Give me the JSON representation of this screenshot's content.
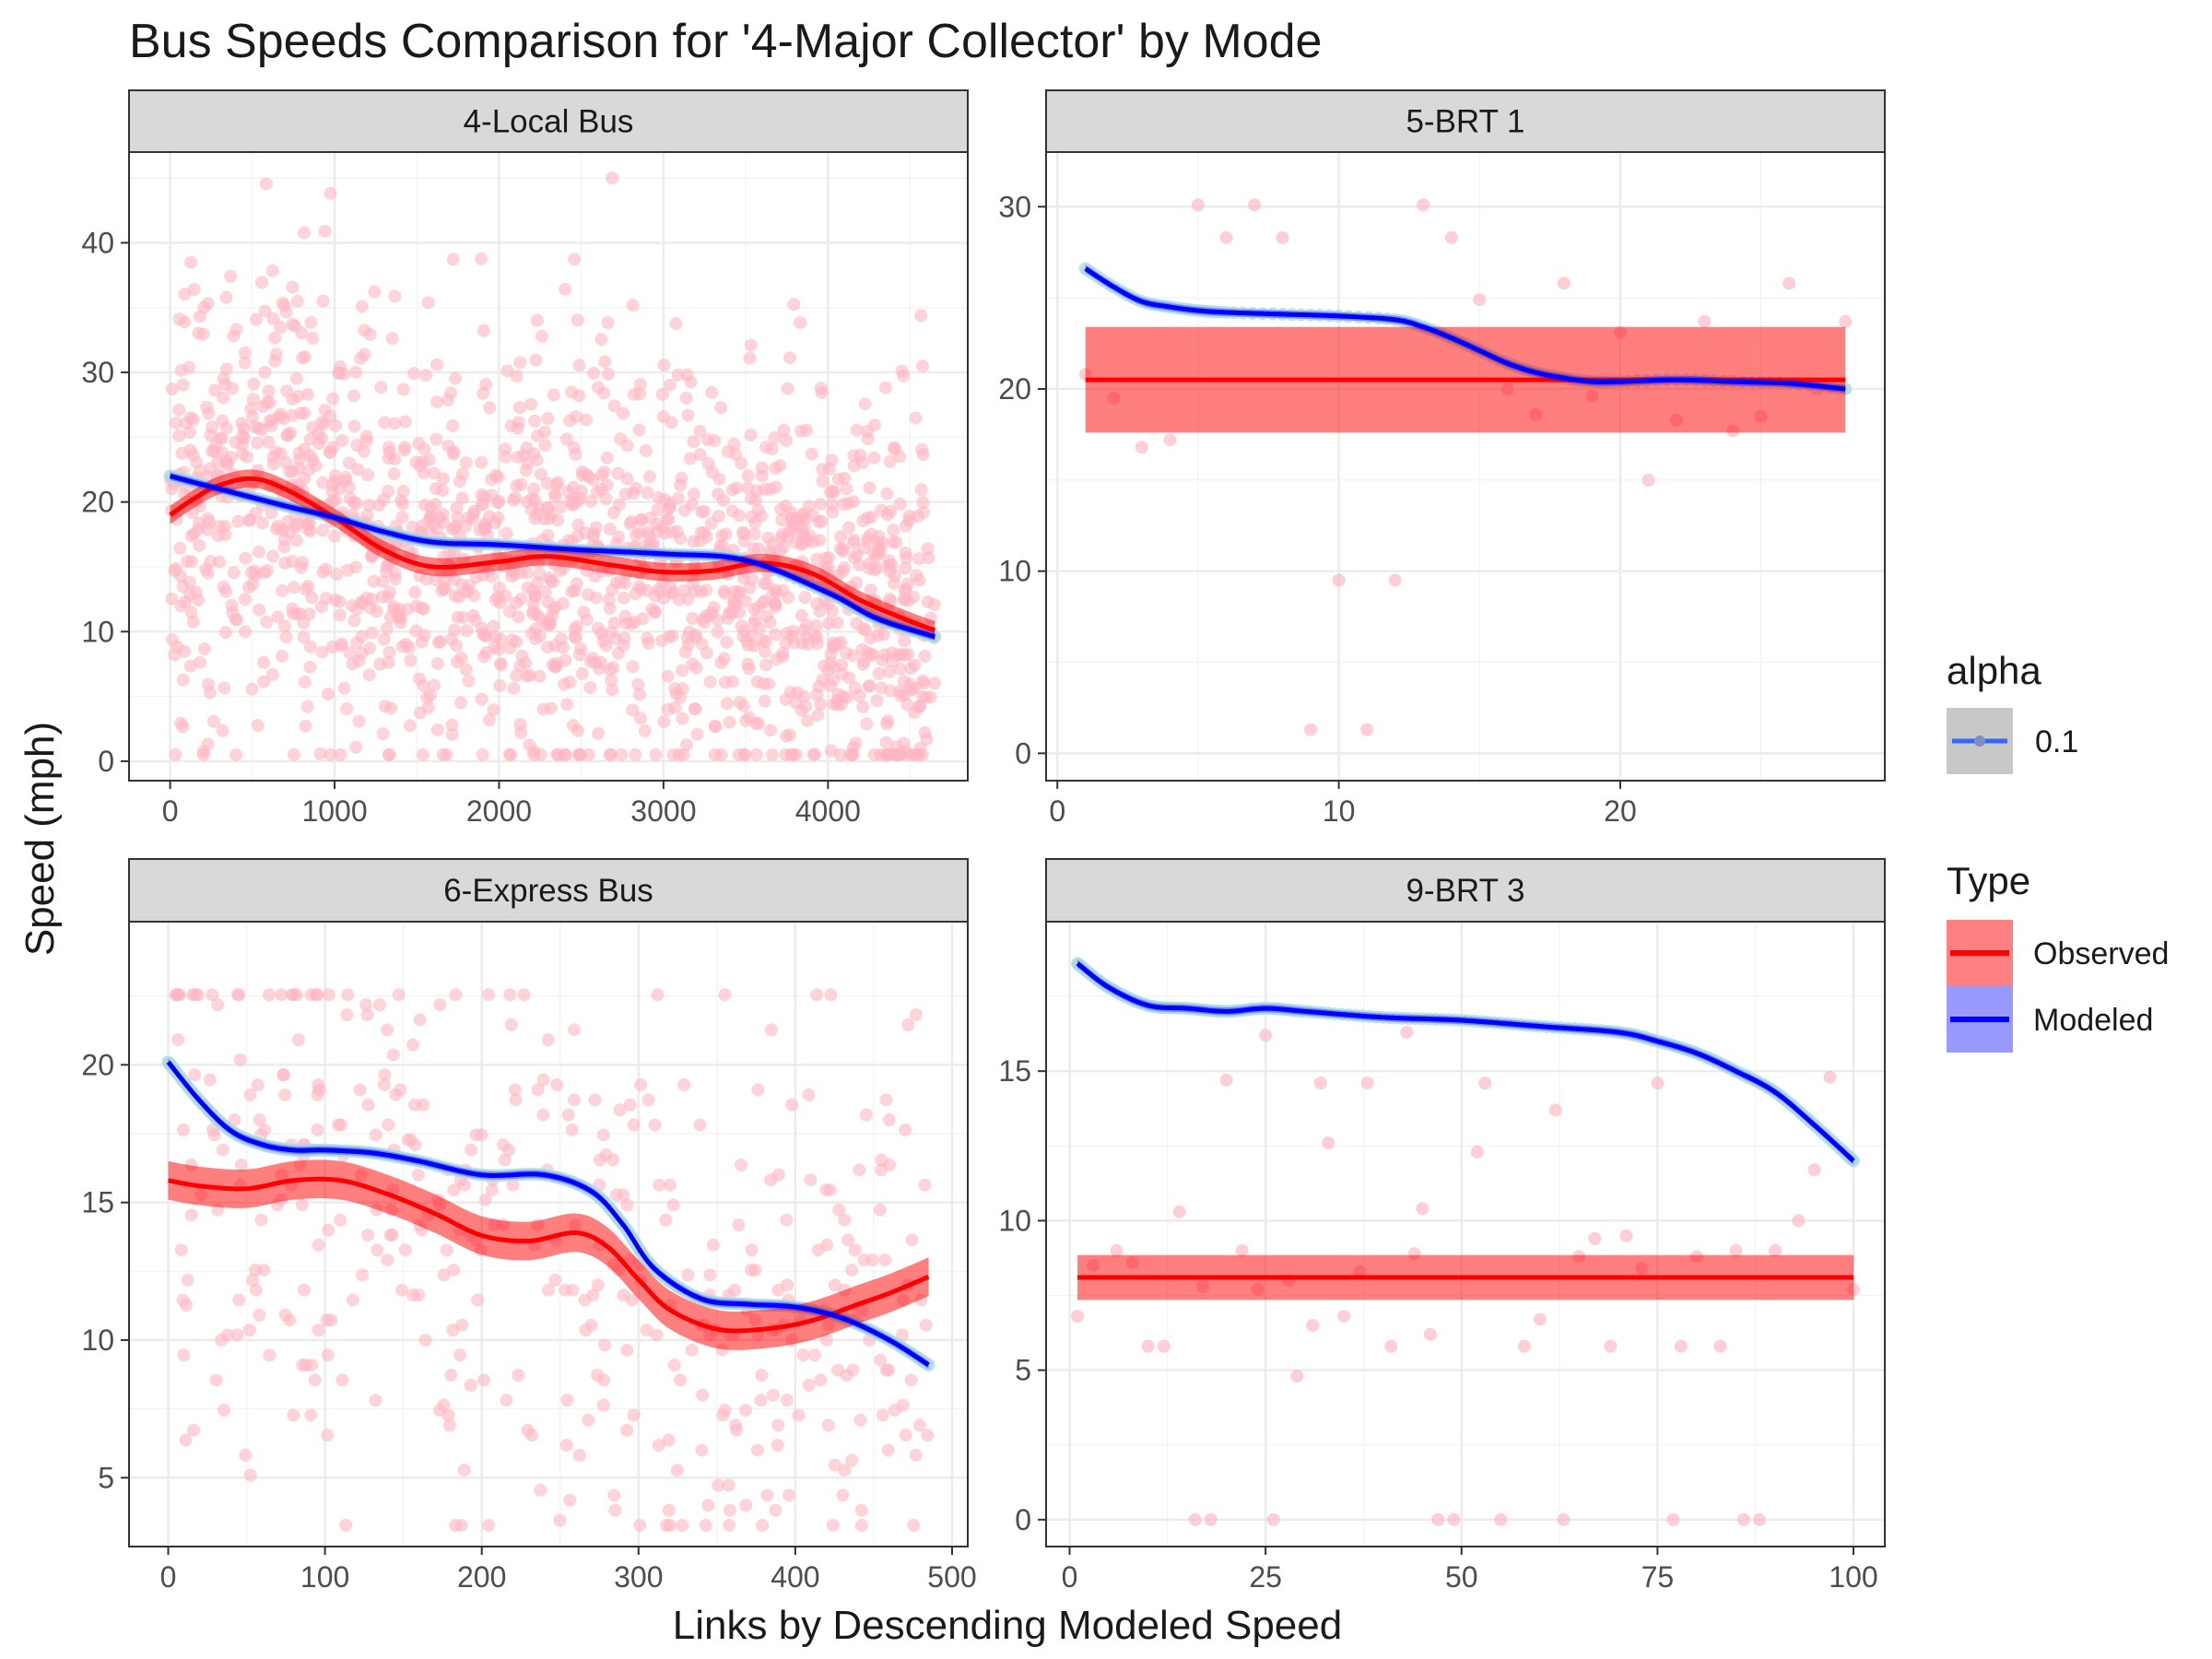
{
  "chart_data": {
    "type": "scatter",
    "title": "Bus Speeds Comparison for '4-Major Collector' by Mode",
    "xlabel": "Links by Descending Modeled Speed",
    "ylabel": "Speed (mph)",
    "legend": {
      "position": "right",
      "alpha_title": "alpha",
      "alpha_value": "0.1",
      "type_title": "Type",
      "type_entries": [
        {
          "label": "Observed",
          "color": "#ff0000",
          "fill": "#ff8080"
        },
        {
          "label": "Modeled",
          "color": "#0000ff",
          "fill": "#9999ff"
        }
      ]
    },
    "colors": {
      "observed_points": "#ffb6c1",
      "modeled_points": "#add8e6",
      "observed_line": "#ff0000",
      "modeled_line": "#0000ff",
      "strip_fill": "#d9d9d9",
      "grid_major": "#ebebeb"
    },
    "grid": true,
    "panels": [
      {
        "name": "4-Local Bus",
        "xlim": [
          -250,
          4850
        ],
        "ylim": [
          -1.5,
          47
        ],
        "xticks": [
          0,
          1000,
          2000,
          3000,
          4000
        ],
        "yticks": [
          0,
          10,
          20,
          30,
          40
        ],
        "observed_points": {
          "n": 1600,
          "x_range": [
            0,
            4650
          ],
          "y_center": 17,
          "y_spread": 8,
          "y_range": [
            0.5,
            45
          ]
        },
        "modeled_curve": {
          "x": [
            0,
            300,
            700,
            1000,
            1300,
            1600,
            2000,
            2500,
            3000,
            3500,
            4000,
            4300,
            4650
          ],
          "y": [
            22.0,
            21.0,
            19.7,
            18.8,
            17.7,
            16.9,
            16.7,
            16.3,
            16.0,
            15.5,
            13.0,
            11.0,
            9.6
          ]
        },
        "observed_fit": {
          "x": [
            0,
            150,
            300,
            500,
            700,
            1000,
            1300,
            1600,
            2000,
            2300,
            2700,
            3000,
            3300,
            3600,
            3900,
            4200,
            4500,
            4650
          ],
          "y": [
            19.0,
            20.3,
            21.3,
            21.8,
            21.0,
            18.8,
            16.3,
            15.0,
            15.4,
            15.8,
            15.1,
            14.6,
            14.7,
            15.3,
            14.5,
            12.4,
            10.8,
            10.1
          ]
        },
        "observed_band": 0.7
      },
      {
        "name": "5-BRT 1",
        "xlim": [
          -0.4,
          29.4
        ],
        "ylim": [
          -1.5,
          33
        ],
        "xticks": [
          0,
          10,
          20
        ],
        "yticks": [
          0,
          10,
          20,
          30
        ],
        "observed_points": {
          "x": [
            1,
            2,
            3,
            4,
            5,
            6,
            7,
            8,
            9,
            10,
            11,
            12,
            13,
            14,
            15,
            16,
            17,
            18,
            19,
            20,
            21,
            22,
            23,
            24,
            25,
            26,
            27,
            28
          ],
          "y": [
            20.8,
            19.5,
            16.8,
            17.2,
            30.1,
            28.3,
            30.1,
            28.3,
            1.3,
            9.5,
            1.3,
            9.5,
            30.1,
            28.3,
            24.9,
            20.0,
            18.6,
            25.8,
            19.6,
            23.1,
            15.0,
            18.3,
            23.7,
            17.7,
            18.5,
            25.8,
            20.0,
            23.7
          ]
        },
        "modeled_curve": {
          "x": [
            1,
            2,
            3,
            4,
            5,
            6,
            8,
            10,
            12,
            13,
            14,
            15,
            16,
            17,
            18,
            19,
            20,
            22,
            24,
            26,
            28
          ],
          "y": [
            26.6,
            25.6,
            24.8,
            24.5,
            24.3,
            24.2,
            24.1,
            24.0,
            23.8,
            23.4,
            22.8,
            22.1,
            21.4,
            20.9,
            20.6,
            20.4,
            20.4,
            20.5,
            20.4,
            20.3,
            20.0
          ]
        },
        "observed_fit": {
          "x": [
            1,
            28
          ],
          "y": [
            20.5,
            20.5
          ]
        },
        "observed_band": 2.9
      },
      {
        "name": "6-Express Bus",
        "xlim": [
          -25,
          510
        ],
        "ylim": [
          2.5,
          25.2
        ],
        "xticks": [
          0,
          100,
          200,
          300,
          400,
          500
        ],
        "yticks": [
          5,
          10,
          15,
          20
        ],
        "observed_points": {
          "n": 420,
          "x_range": [
            0,
            485
          ],
          "y_center": 13,
          "y_spread": 5,
          "y_range": [
            3.2,
            22.6
          ]
        },
        "modeled_curve": {
          "x": [
            0,
            20,
            40,
            60,
            80,
            100,
            130,
            160,
            200,
            240,
            270,
            290,
            310,
            340,
            370,
            400,
            430,
            460,
            485
          ],
          "y": [
            20.1,
            18.7,
            17.6,
            17.1,
            16.9,
            16.9,
            16.8,
            16.5,
            16.0,
            16.0,
            15.4,
            14.2,
            12.6,
            11.5,
            11.3,
            11.2,
            10.8,
            10.0,
            9.1
          ]
        },
        "observed_fit": {
          "x": [
            0,
            20,
            50,
            80,
            110,
            140,
            170,
            200,
            230,
            260,
            280,
            300,
            320,
            350,
            380,
            410,
            440,
            460,
            485
          ],
          "y": [
            15.8,
            15.6,
            15.5,
            15.8,
            15.8,
            15.3,
            14.6,
            13.8,
            13.6,
            13.9,
            13.4,
            12.2,
            11.1,
            10.4,
            10.4,
            10.7,
            11.3,
            11.7,
            12.3
          ]
        },
        "observed_band": 0.7
      },
      {
        "name": "9-BRT 3",
        "xlim": [
          -3,
          104
        ],
        "ylim": [
          -0.9,
          20
        ],
        "xticks": [
          0,
          25,
          50,
          75,
          100
        ],
        "yticks": [
          0,
          5,
          10,
          15
        ],
        "observed_points": {
          "x": [
            1,
            3,
            6,
            8,
            10,
            12,
            14,
            16,
            17,
            18,
            20,
            22,
            24,
            25,
            26,
            28,
            29,
            31,
            32,
            33,
            35,
            37,
            38,
            41,
            43,
            44,
            45,
            46,
            47,
            49,
            52,
            53,
            55,
            58,
            60,
            62,
            63,
            65,
            67,
            69,
            71,
            73,
            75,
            77,
            78,
            80,
            83,
            85,
            86,
            88,
            90,
            93,
            95,
            97,
            100
          ],
          "y": [
            6.8,
            8.5,
            9.0,
            8.6,
            5.8,
            5.8,
            10.3,
            0.0,
            7.8,
            0.0,
            14.7,
            9.0,
            7.7,
            16.2,
            0.0,
            8.0,
            4.8,
            6.5,
            14.6,
            12.6,
            6.8,
            8.3,
            14.6,
            5.8,
            16.3,
            8.9,
            10.4,
            6.2,
            0.0,
            0.0,
            12.3,
            14.6,
            0.0,
            5.8,
            6.7,
            13.7,
            0.0,
            8.8,
            9.4,
            5.8,
            9.5,
            8.4,
            14.6,
            0.0,
            5.8,
            8.8,
            5.8,
            9.0,
            0.0,
            0.0,
            9.0,
            10.0,
            11.7,
            14.8,
            7.7
          ]
        },
        "modeled_curve": {
          "x": [
            1,
            5,
            10,
            15,
            20,
            25,
            30,
            40,
            50,
            60,
            70,
            75,
            80,
            85,
            90,
            95,
            100
          ],
          "y": [
            18.6,
            17.8,
            17.2,
            17.1,
            17.0,
            17.1,
            17.0,
            16.8,
            16.7,
            16.5,
            16.3,
            16.0,
            15.6,
            15.0,
            14.3,
            13.2,
            12.0
          ]
        },
        "observed_fit": {
          "x": [
            1,
            100
          ],
          "y": [
            8.1,
            8.1
          ]
        },
        "observed_band": 0.75
      }
    ]
  }
}
